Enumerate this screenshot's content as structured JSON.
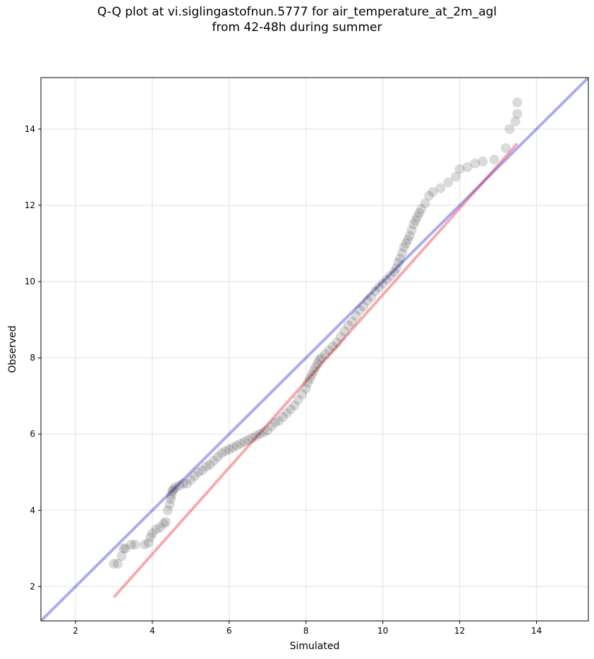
{
  "chart_data": {
    "type": "scatter",
    "title_lines": [
      "Q-Q plot at vi.siglingastofnun.5777 for air_temperature_at_2m_agl",
      "from 42-48h during summer"
    ],
    "xlabel": "Simulated",
    "ylabel": "Observed",
    "xlim": [
      1.1,
      15.35
    ],
    "ylim": [
      1.1,
      15.35
    ],
    "xticks": [
      "2",
      "4",
      "6",
      "8",
      "10",
      "12",
      "14"
    ],
    "yticks": [
      "2",
      "4",
      "6",
      "8",
      "10",
      "12",
      "14"
    ],
    "grid": true,
    "colors": {
      "points": "#000000",
      "identity_line": "#0000dd",
      "fit_line": "#e8000b"
    },
    "identity_line": {
      "x": [
        1.1,
        15.35
      ],
      "y": [
        1.1,
        15.35
      ]
    },
    "fit_line": {
      "x": [
        3.0,
        13.5
      ],
      "y": [
        1.72,
        13.62
      ]
    },
    "points": {
      "x": [
        3.0,
        3.1,
        3.2,
        3.25,
        3.3,
        3.45,
        3.55,
        3.8,
        3.9,
        3.95,
        4.0,
        4.1,
        4.2,
        4.3,
        4.35,
        4.4,
        4.45,
        4.48,
        4.5,
        4.52,
        4.55,
        4.6,
        4.7,
        4.8,
        4.9,
        5.0,
        5.1,
        5.2,
        5.3,
        5.4,
        5.5,
        5.6,
        5.7,
        5.8,
        5.9,
        6.0,
        6.1,
        6.2,
        6.3,
        6.4,
        6.5,
        6.6,
        6.7,
        6.8,
        6.9,
        7.0,
        7.1,
        7.2,
        7.3,
        7.4,
        7.5,
        7.6,
        7.7,
        7.8,
        7.9,
        8.0,
        8.05,
        8.1,
        8.15,
        8.2,
        8.25,
        8.3,
        8.35,
        8.4,
        8.5,
        8.6,
        8.7,
        8.8,
        8.9,
        9.0,
        9.1,
        9.2,
        9.3,
        9.4,
        9.5,
        9.6,
        9.7,
        9.8,
        9.9,
        10.0,
        10.1,
        10.2,
        10.3,
        10.35,
        10.4,
        10.45,
        10.5,
        10.55,
        10.6,
        10.65,
        10.7,
        10.75,
        10.8,
        10.85,
        10.9,
        10.95,
        11.0,
        11.1,
        11.2,
        11.3,
        11.5,
        11.7,
        11.9,
        12.0,
        12.2,
        12.4,
        12.6,
        12.9,
        13.2,
        13.3,
        13.45,
        13.5,
        13.5
      ],
      "y": [
        2.6,
        2.6,
        2.8,
        3.0,
        3.0,
        3.1,
        3.1,
        3.1,
        3.15,
        3.3,
        3.4,
        3.5,
        3.55,
        3.65,
        3.7,
        4.0,
        4.15,
        4.3,
        4.4,
        4.5,
        4.55,
        4.6,
        4.65,
        4.7,
        4.7,
        4.8,
        4.9,
        5.0,
        5.05,
        5.15,
        5.2,
        5.3,
        5.4,
        5.5,
        5.55,
        5.6,
        5.65,
        5.7,
        5.75,
        5.8,
        5.85,
        5.9,
        5.95,
        6.0,
        6.05,
        6.1,
        6.2,
        6.3,
        6.35,
        6.45,
        6.55,
        6.65,
        6.75,
        6.9,
        7.05,
        7.2,
        7.35,
        7.45,
        7.55,
        7.65,
        7.75,
        7.85,
        7.95,
        8.0,
        8.1,
        8.2,
        8.3,
        8.4,
        8.55,
        8.7,
        8.85,
        8.95,
        9.1,
        9.25,
        9.35,
        9.5,
        9.6,
        9.75,
        9.85,
        9.95,
        10.05,
        10.15,
        10.25,
        10.35,
        10.5,
        10.6,
        10.75,
        10.9,
        11.0,
        11.1,
        11.2,
        11.35,
        11.5,
        11.6,
        11.7,
        11.8,
        11.9,
        12.05,
        12.25,
        12.35,
        12.45,
        12.6,
        12.75,
        12.95,
        13.0,
        13.1,
        13.15,
        13.2,
        13.5,
        14.0,
        14.2,
        14.4,
        14.7
      ]
    }
  }
}
